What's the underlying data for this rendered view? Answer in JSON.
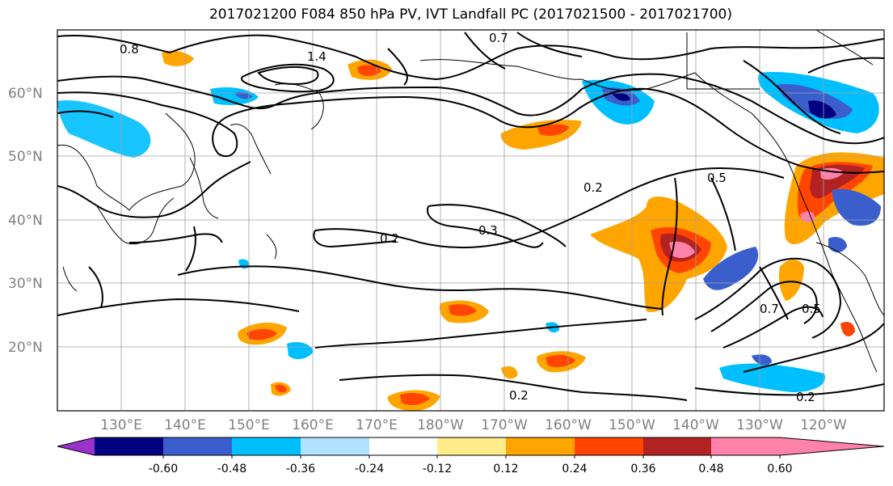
{
  "title": "2017021200 F084 850 hPa PV, IVT Landfall PC (2017021500 - 2017021700)",
  "lat_labels": [
    "60°N",
    "50°N",
    "40°N",
    "30°N",
    "20°N"
  ],
  "lon_labels": [
    "130°E",
    "140°E",
    "150°E",
    "160°E",
    "170°E",
    "180°W",
    "170°W",
    "160°W",
    "150°W",
    "140°W",
    "130°W",
    "120°W"
  ],
  "contour_labels": [
    "0.8",
    "1.4",
    "0.7",
    "0.2",
    "0.3",
    "0.2",
    "0.5",
    "0.2",
    "0.2",
    "0.7",
    "0.5"
  ],
  "colorbar": {
    "colors": [
      "#9932cc",
      "#000080",
      "#3a5fcd",
      "#00bfff",
      "#b0e2ff",
      "#ffffff",
      "#ffec8b",
      "#ffa500",
      "#ff4500",
      "#b22222",
      "#ff82ab"
    ],
    "tick_labels": [
      "-0.60",
      "-0.48",
      "-0.36",
      "-0.24",
      "-0.12",
      "0.12",
      "0.24",
      "0.36",
      "0.48",
      "0.60"
    ]
  }
}
